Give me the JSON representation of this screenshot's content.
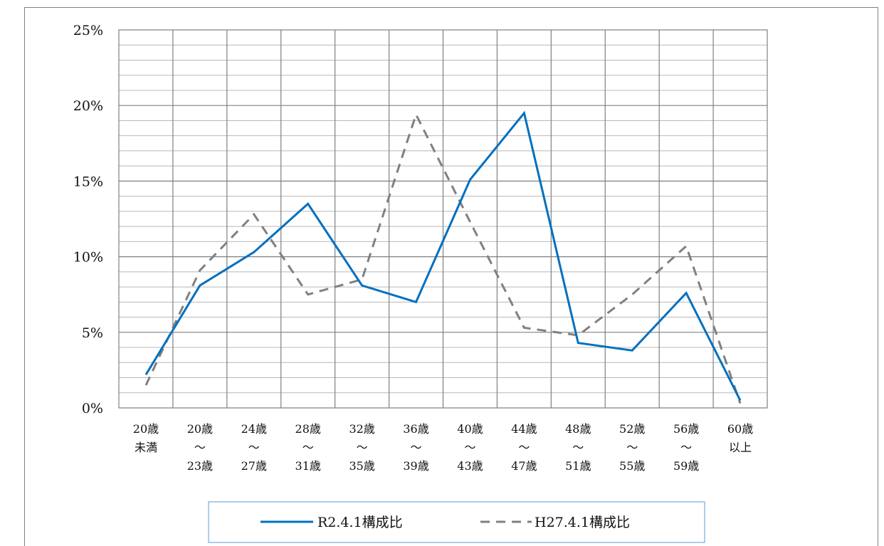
{
  "chart_data": {
    "type": "line",
    "categories": [
      [
        "20歳",
        "未満"
      ],
      [
        "20歳",
        "～",
        "23歳"
      ],
      [
        "24歳",
        "～",
        "27歳"
      ],
      [
        "28歳",
        "～",
        "31歳"
      ],
      [
        "32歳",
        "～",
        "35歳"
      ],
      [
        "36歳",
        "～",
        "39歳"
      ],
      [
        "40歳",
        "～",
        "43歳"
      ],
      [
        "44歳",
        "～",
        "47歳"
      ],
      [
        "48歳",
        "～",
        "51歳"
      ],
      [
        "52歳",
        "～",
        "55歳"
      ],
      [
        "56歳",
        "～",
        "59歳"
      ],
      [
        "60歳",
        "以上"
      ]
    ],
    "y_ticks": [
      "0%",
      "5%",
      "10%",
      "15%",
      "20%",
      "25%"
    ],
    "ylim": [
      0,
      25
    ],
    "y_unit": "%",
    "grid": true,
    "legend_position": "bottom",
    "series": [
      {
        "name": "R2.4.1構成比",
        "color": "#0070c0",
        "style": "solid",
        "values": [
          2.2,
          8.1,
          10.3,
          13.5,
          8.1,
          7.0,
          15.1,
          19.5,
          4.3,
          3.8,
          7.6,
          0.5
        ]
      },
      {
        "name": "H27.4.1構成比",
        "color": "#808080",
        "style": "dashed",
        "values": [
          1.5,
          9.1,
          12.8,
          7.5,
          8.5,
          19.4,
          12.3,
          5.3,
          4.8,
          7.5,
          10.7,
          0.3
        ]
      }
    ]
  }
}
